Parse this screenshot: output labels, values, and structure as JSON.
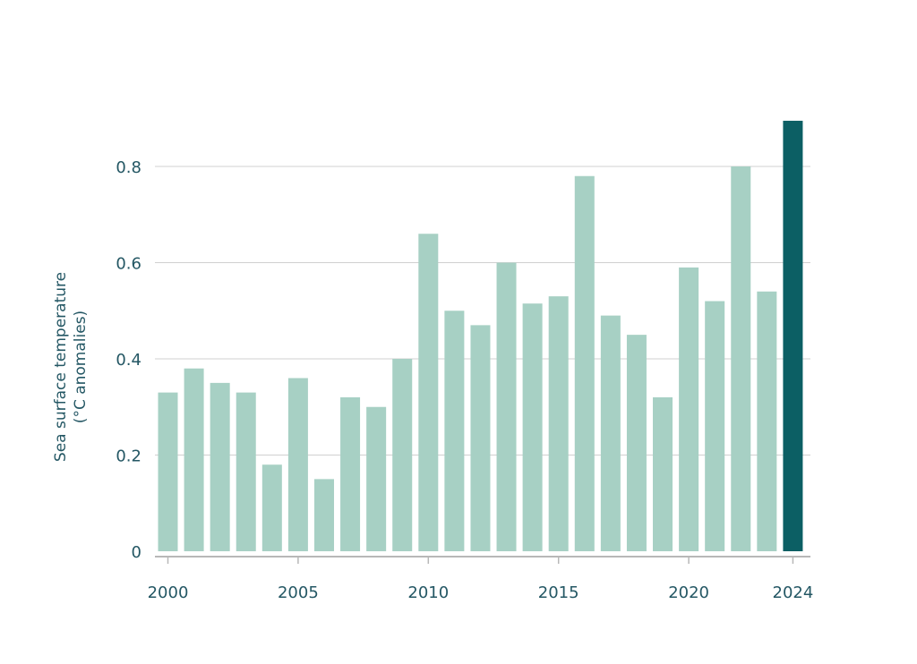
{
  "chart_data": {
    "type": "bar",
    "title": "",
    "xlabel": "",
    "ylabel": "Sea surface temperature",
    "ylabel_line2": "(°C anomalies)",
    "ylim": [
      0,
      0.9
    ],
    "yticks": [
      0,
      0.2,
      0.4,
      0.6,
      0.8
    ],
    "ytick_labels": [
      "0",
      "0.2",
      "0.4",
      "0.6",
      "0.8"
    ],
    "xtick_labels": [
      "2000",
      "2005",
      "2010",
      "2015",
      "2020",
      "2024"
    ],
    "grid": true,
    "categories": [
      2000,
      2001,
      2002,
      2003,
      2004,
      2005,
      2006,
      2007,
      2008,
      2009,
      2010,
      2011,
      2012,
      2013,
      2014,
      2015,
      2016,
      2017,
      2018,
      2019,
      2020,
      2021,
      2022,
      2023,
      2024
    ],
    "values": [
      0.33,
      0.38,
      0.35,
      0.33,
      0.18,
      0.36,
      0.15,
      0.32,
      0.3,
      0.4,
      0.66,
      0.5,
      0.47,
      0.6,
      0.515,
      0.53,
      0.78,
      0.49,
      0.45,
      0.32,
      0.59,
      0.52,
      0.8,
      0.54,
      0.895
    ],
    "highlight_category": 2024,
    "colors": {
      "bar": "#a7d0c4",
      "highlight": "#0c5f64",
      "grid": "#d0d0d0",
      "axis": "#b8b8b8",
      "text": "#245764"
    }
  }
}
